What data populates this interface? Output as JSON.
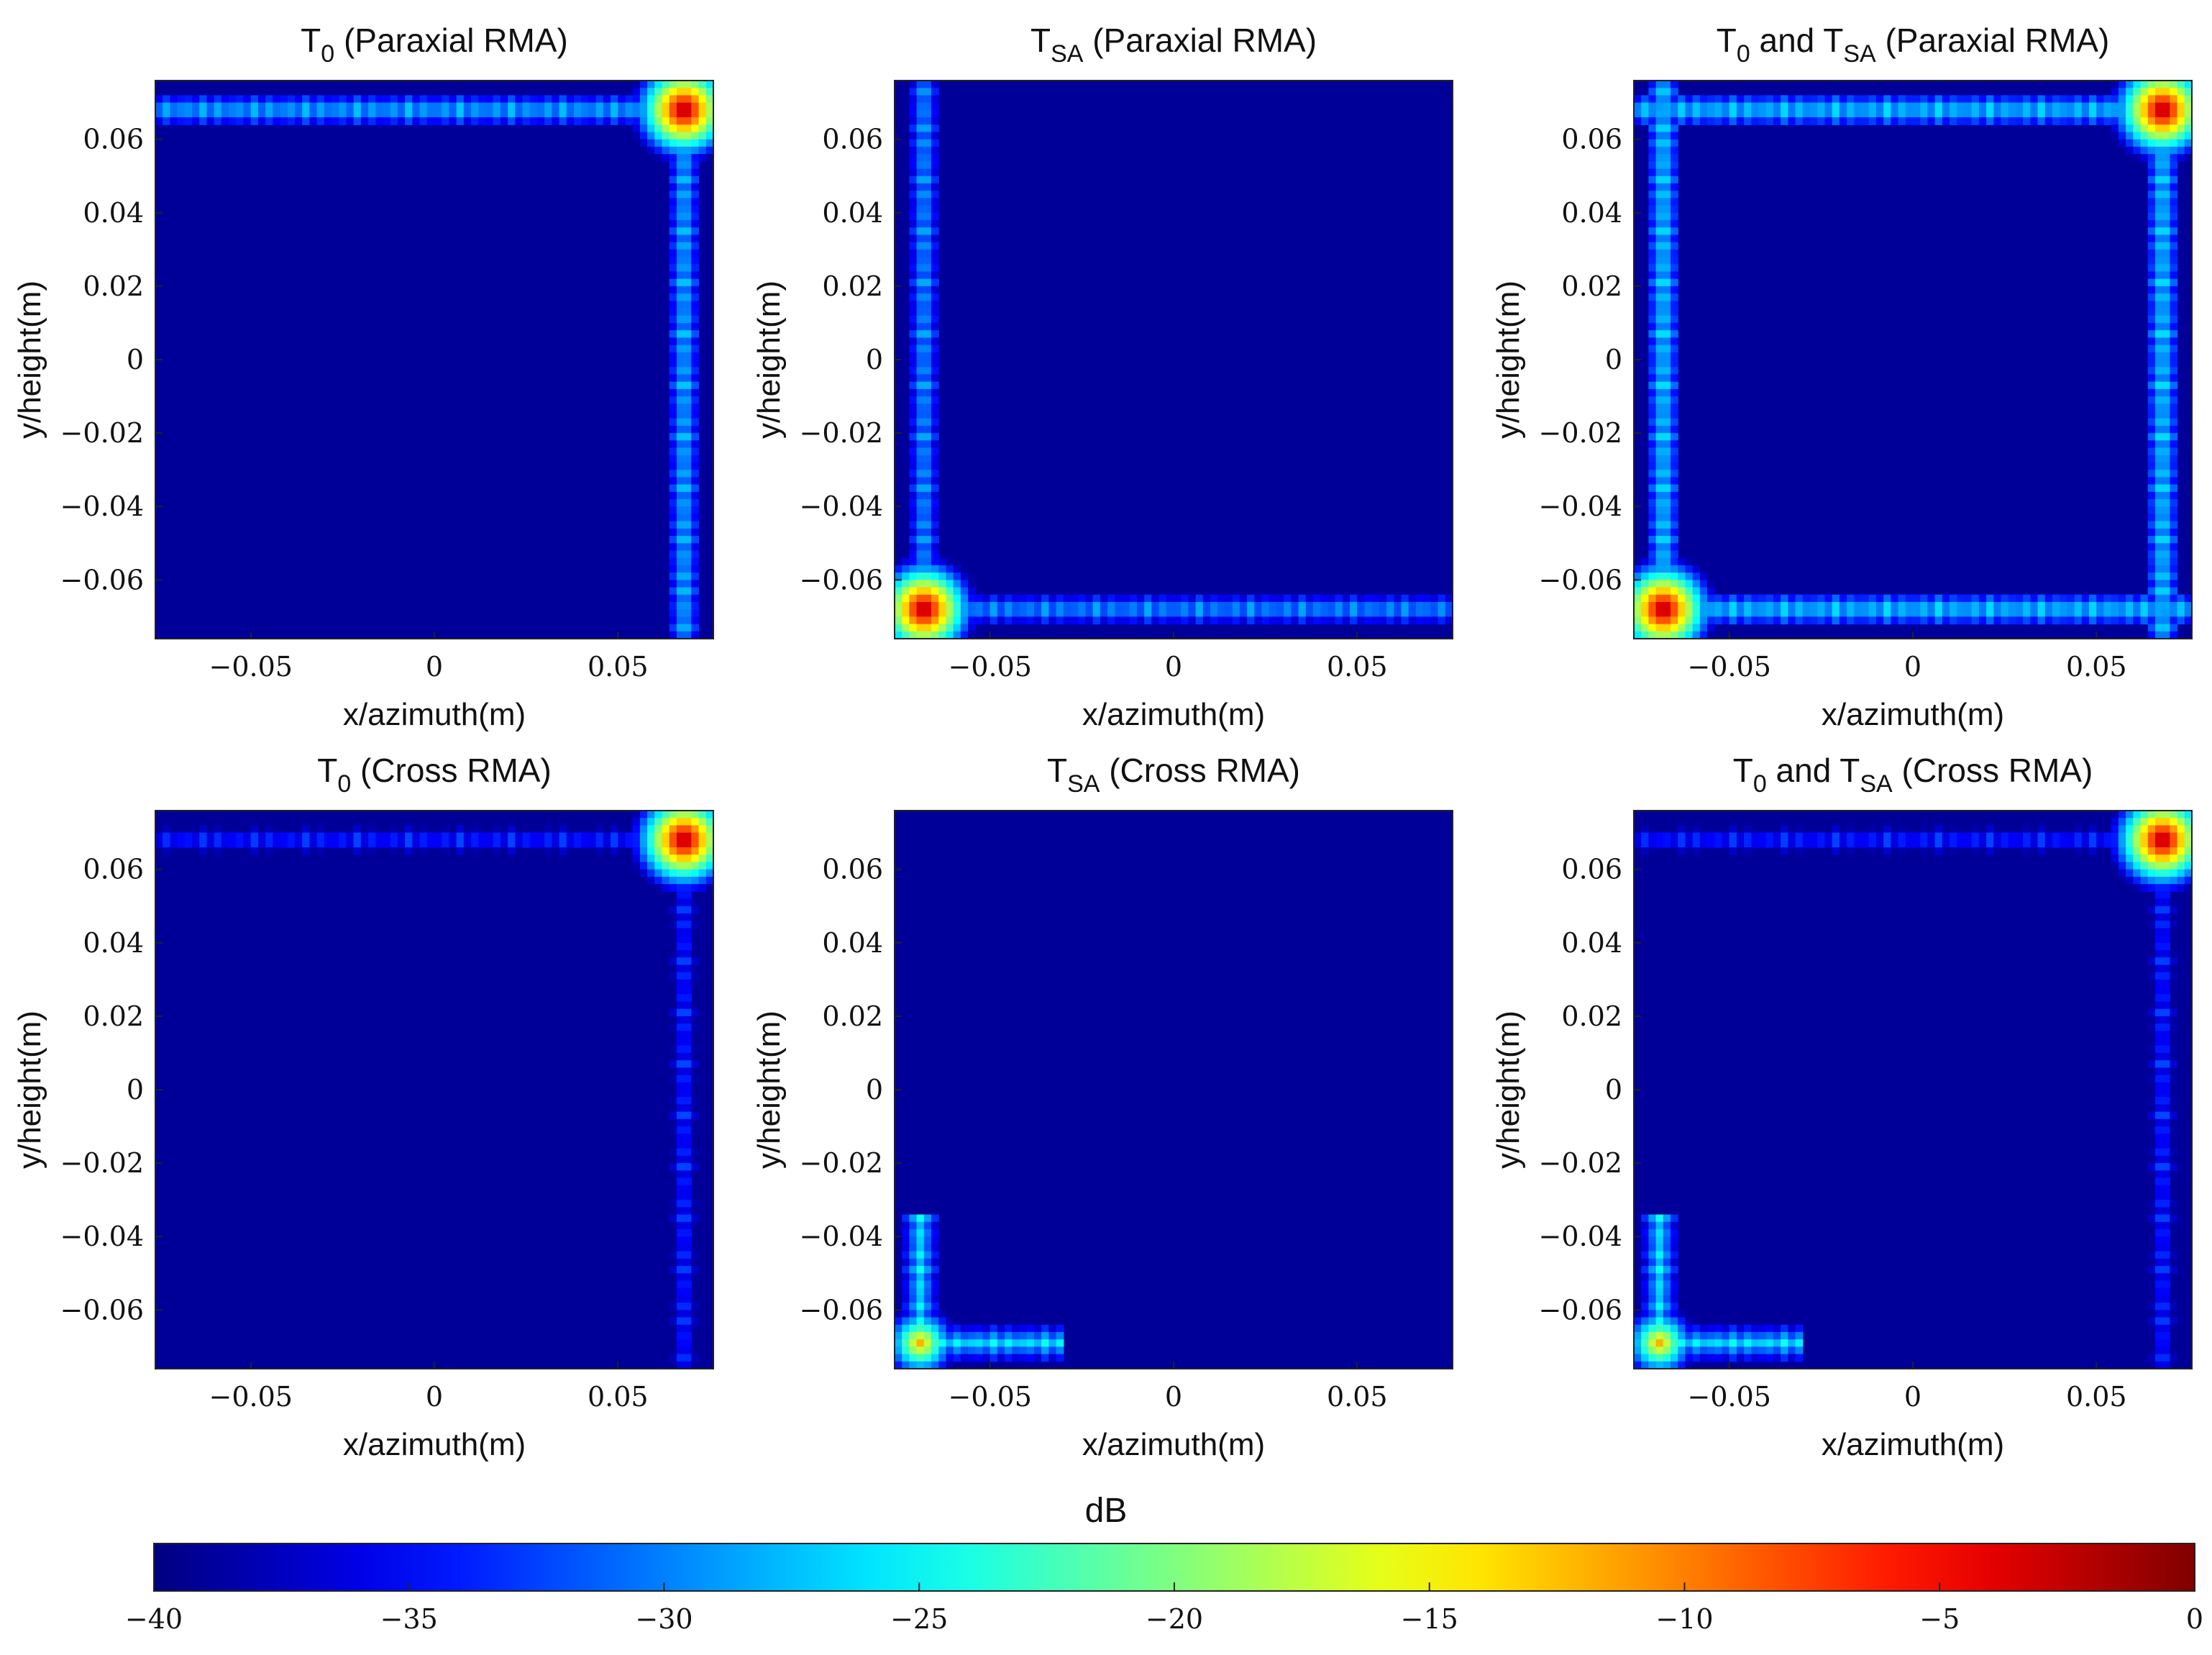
{
  "figure": {
    "colormap": "jet",
    "colorbar": {
      "label": "dB",
      "range": [
        -40,
        0
      ],
      "ticks": [
        -40,
        -35,
        -30,
        -25,
        -20,
        -15,
        -10,
        -5,
        0
      ],
      "tick_labels": [
        "−40",
        "−35",
        "−30",
        "−25",
        "−20",
        "−15",
        "−10",
        "−5",
        "0"
      ],
      "placement": "bottom"
    }
  },
  "chart_data": [
    {
      "type": "heatmap",
      "title": {
        "main": "T",
        "sub": "0",
        "rest": " (Paraxial RMA)"
      },
      "xlabel": "x/azimuth(m)",
      "ylabel": "y/height(m)",
      "xlim": [
        -0.076,
        0.076
      ],
      "ylim": [
        -0.076,
        0.076
      ],
      "xticks": [
        -0.05,
        0,
        0.05
      ],
      "xtick_labels": [
        "−0.05",
        "0",
        "0.05"
      ],
      "yticks": [
        0.06,
        0.04,
        0.02,
        0,
        -0.02,
        -0.04,
        -0.06
      ],
      "ytick_labels": [
        "0.06",
        "0.04",
        "0.02",
        "0",
        "−0.02",
        "−0.04",
        "−0.06"
      ],
      "background_db": -39,
      "peaks": [
        {
          "x": 0.068,
          "y": 0.068,
          "db": 0
        }
      ],
      "streaks": [
        {
          "axis": "row",
          "at": 0.068,
          "from": -0.076,
          "to": 0.068,
          "db": -25
        },
        {
          "axis": "col",
          "at": 0.068,
          "from": -0.076,
          "to": 0.068,
          "db": -25
        }
      ]
    },
    {
      "type": "heatmap",
      "title": {
        "main": "T",
        "sub": "SA",
        "rest": " (Paraxial RMA)"
      },
      "xlabel": "x/azimuth(m)",
      "ylabel": "y/height(m)",
      "xlim": [
        -0.076,
        0.076
      ],
      "ylim": [
        -0.076,
        0.076
      ],
      "xticks": [
        -0.05,
        0,
        0.05
      ],
      "xtick_labels": [
        "−0.05",
        "0",
        "0.05"
      ],
      "yticks": [
        0.06,
        0.04,
        0.02,
        0,
        -0.02,
        -0.04,
        -0.06
      ],
      "ytick_labels": [
        "0.06",
        "0.04",
        "0.02",
        "0",
        "−0.02",
        "−0.04",
        "−0.06"
      ],
      "background_db": -39,
      "peaks": [
        {
          "x": -0.068,
          "y": -0.068,
          "db": 0
        }
      ],
      "streaks": [
        {
          "axis": "row",
          "at": -0.068,
          "from": -0.068,
          "to": 0.076,
          "db": -26
        },
        {
          "axis": "col",
          "at": -0.068,
          "from": -0.068,
          "to": 0.076,
          "db": -26
        }
      ]
    },
    {
      "type": "heatmap",
      "title": {
        "main": "T",
        "sub": "0",
        "rest": "  and  ",
        "main2": "T",
        "sub2": "SA",
        "rest2": " (Paraxial RMA)"
      },
      "xlabel": "x/azimuth(m)",
      "ylabel": "y/height(m)",
      "xlim": [
        -0.076,
        0.076
      ],
      "ylim": [
        -0.076,
        0.076
      ],
      "xticks": [
        -0.05,
        0,
        0.05
      ],
      "xtick_labels": [
        "−0.05",
        "0",
        "0.05"
      ],
      "yticks": [
        0.06,
        0.04,
        0.02,
        0,
        -0.02,
        -0.04,
        -0.06
      ],
      "ytick_labels": [
        "0.06",
        "0.04",
        "0.02",
        "0",
        "−0.02",
        "−0.04",
        "−0.06"
      ],
      "background_db": -39,
      "peaks": [
        {
          "x": 0.068,
          "y": 0.068,
          "db": 0
        },
        {
          "x": -0.068,
          "y": -0.068,
          "db": 0
        }
      ],
      "streaks": [
        {
          "axis": "row",
          "at": 0.068,
          "from": -0.076,
          "to": 0.068,
          "db": -24
        },
        {
          "axis": "col",
          "at": 0.068,
          "from": -0.076,
          "to": 0.068,
          "db": -24
        },
        {
          "axis": "row",
          "at": -0.068,
          "from": -0.068,
          "to": 0.076,
          "db": -24
        },
        {
          "axis": "col",
          "at": -0.068,
          "from": -0.068,
          "to": 0.076,
          "db": -24
        }
      ]
    },
    {
      "type": "heatmap",
      "title": {
        "main": "T",
        "sub": "0",
        "rest": " (Cross RMA)"
      },
      "xlabel": "x/azimuth(m)",
      "ylabel": "y/height(m)",
      "xlim": [
        -0.076,
        0.076
      ],
      "ylim": [
        -0.076,
        0.076
      ],
      "xticks": [
        -0.05,
        0,
        0.05
      ],
      "xtick_labels": [
        "−0.05",
        "0",
        "0.05"
      ],
      "yticks": [
        0.06,
        0.04,
        0.02,
        0,
        -0.02,
        -0.04,
        -0.06
      ],
      "ytick_labels": [
        "0.06",
        "0.04",
        "0.02",
        "0",
        "−0.02",
        "−0.04",
        "−0.06"
      ],
      "background_db": -39,
      "peaks": [
        {
          "x": 0.068,
          "y": 0.068,
          "db": 0
        }
      ],
      "streaks": [
        {
          "axis": "row",
          "at": 0.068,
          "from": -0.076,
          "to": 0.068,
          "db": -30
        },
        {
          "axis": "col",
          "at": 0.068,
          "from": -0.076,
          "to": 0.068,
          "db": -30
        }
      ]
    },
    {
      "type": "heatmap",
      "title": {
        "main": "T",
        "sub": "SA",
        "rest": " (Cross RMA)"
      },
      "xlabel": "x/azimuth(m)",
      "ylabel": "y/height(m)",
      "xlim": [
        -0.076,
        0.076
      ],
      "ylim": [
        -0.076,
        0.076
      ],
      "xticks": [
        -0.05,
        0,
        0.05
      ],
      "xtick_labels": [
        "−0.05",
        "0",
        "0.05"
      ],
      "yticks": [
        0.06,
        0.04,
        0.02,
        0,
        -0.02,
        -0.04,
        -0.06
      ],
      "ytick_labels": [
        "0.06",
        "0.04",
        "0.02",
        "0",
        "−0.02",
        "−0.04",
        "−0.06"
      ],
      "background_db": -39,
      "peaks": [
        {
          "x": -0.069,
          "y": -0.069,
          "db": -12
        }
      ],
      "streaks": [
        {
          "axis": "row",
          "at": -0.069,
          "from": -0.069,
          "to": -0.03,
          "db": -24
        },
        {
          "axis": "col",
          "at": -0.069,
          "from": -0.069,
          "to": -0.035,
          "db": -24
        }
      ]
    },
    {
      "type": "heatmap",
      "title": {
        "main": "T",
        "sub": "0",
        "rest": "  and  ",
        "main2": "T",
        "sub2": "SA",
        "rest2": " (Cross RMA)"
      },
      "xlabel": "x/azimuth(m)",
      "ylabel": "y/height(m)",
      "xlim": [
        -0.076,
        0.076
      ],
      "ylim": [
        -0.076,
        0.076
      ],
      "xticks": [
        -0.05,
        0,
        0.05
      ],
      "xtick_labels": [
        "−0.05",
        "0",
        "0.05"
      ],
      "yticks": [
        0.06,
        0.04,
        0.02,
        0,
        -0.02,
        -0.04,
        -0.06
      ],
      "ytick_labels": [
        "0.06",
        "0.04",
        "0.02",
        "0",
        "−0.02",
        "−0.04",
        "−0.06"
      ],
      "background_db": -39,
      "peaks": [
        {
          "x": 0.068,
          "y": 0.068,
          "db": 0
        },
        {
          "x": -0.069,
          "y": -0.069,
          "db": -12
        }
      ],
      "streaks": [
        {
          "axis": "row",
          "at": 0.068,
          "from": -0.076,
          "to": 0.068,
          "db": -30
        },
        {
          "axis": "col",
          "at": 0.068,
          "from": -0.076,
          "to": 0.068,
          "db": -30
        },
        {
          "axis": "row",
          "at": -0.069,
          "from": -0.069,
          "to": -0.03,
          "db": -24
        },
        {
          "axis": "col",
          "at": -0.069,
          "from": -0.069,
          "to": -0.035,
          "db": -24
        }
      ]
    }
  ]
}
